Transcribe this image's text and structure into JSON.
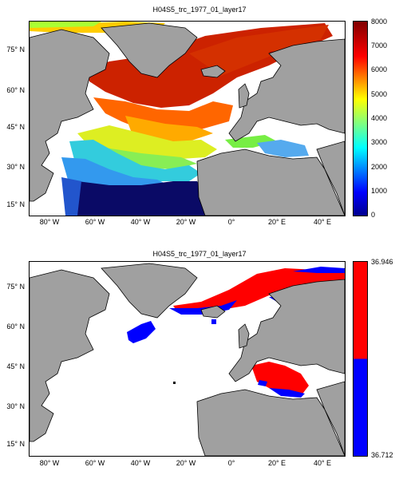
{
  "panels": [
    {
      "title": "H04S5_trc_1977_01_layer17",
      "colorbar": {
        "ticks": [
          "0",
          "1000",
          "2000",
          "3000",
          "4000",
          "5000",
          "6000",
          "7000",
          "8000"
        ],
        "range": [
          0,
          8000
        ],
        "colormap": "jet"
      }
    },
    {
      "title": "H04S5_trc_1977_01_layer17",
      "colorbar": {
        "top_label": "36.946",
        "bottom_label": "36.712",
        "colors": [
          "#ff0000",
          "#0000ff"
        ]
      }
    }
  ],
  "lat_ticks": [
    "75° N",
    "60° N",
    "45° N",
    "30° N",
    "15° N"
  ],
  "lon_ticks": [
    "80° W",
    "60° W",
    "40° W",
    "20° W",
    "0°",
    "20° E",
    "40° E"
  ],
  "colors": {
    "land": "#a0a0a0",
    "water": "#ffffff",
    "coast": "#000000"
  }
}
